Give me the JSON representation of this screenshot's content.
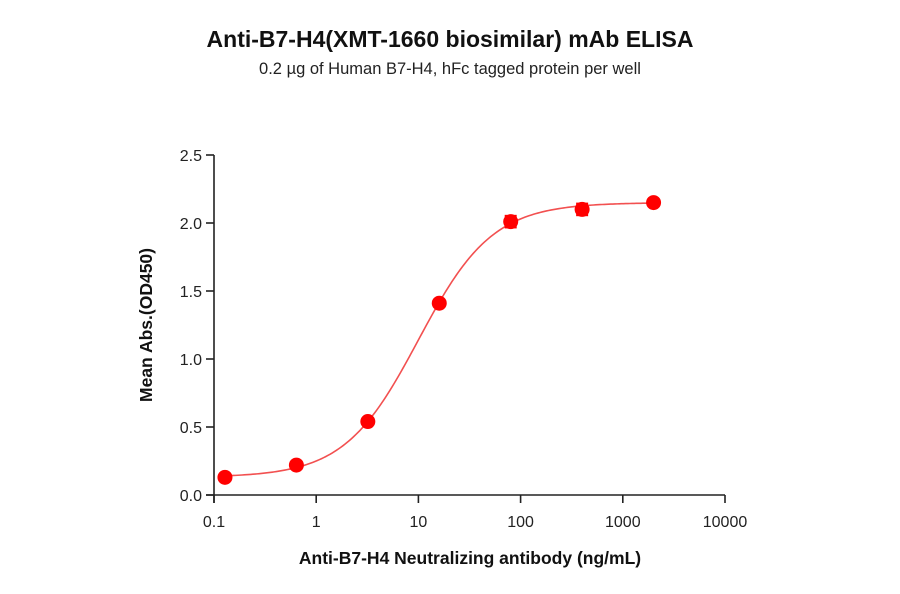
{
  "header": {
    "title": "Anti-B7-H4(XMT-1660 biosimilar) mAb ELISA",
    "subtitle": "0.2 µg of Human B7-H4, hFc tagged protein per well"
  },
  "colors": {
    "marker": "#FF0000",
    "curve": "#F25050",
    "axis": "#222222"
  },
  "chart_data": {
    "type": "scatter",
    "title": "Anti-B7-H4(XMT-1660 biosimilar) mAb ELISA",
    "subtitle": "0.2 µg of Human B7-H4, hFc tagged protein per well",
    "xlabel": "Anti-B7-H4 Neutralizing antibody  (ng/mL)",
    "ylabel": "Mean Abs.(OD450)",
    "xscale": "log",
    "xlim": [
      0.1,
      10000
    ],
    "ylim": [
      0.0,
      2.5
    ],
    "xticks": [
      "0.1",
      "1",
      "10",
      "100",
      "1000",
      "10000"
    ],
    "yticks": [
      "0.0",
      "0.5",
      "1.0",
      "1.5",
      "2.0",
      "2.5"
    ],
    "grid": false,
    "legend": null,
    "series": [
      {
        "name": "Anti-B7-H4 (XMT-1660 biosimilar)",
        "marker": "circle",
        "x": [
          0.128,
          0.64,
          3.2,
          16,
          80,
          400,
          2000
        ],
        "y": [
          0.13,
          0.22,
          0.54,
          1.41,
          2.01,
          2.1,
          2.15
        ],
        "error": [
          0.01,
          0.01,
          0.01,
          0.02,
          0.05,
          0.05,
          0.01
        ]
      }
    ],
    "fit": {
      "model": "4PL",
      "bottom": 0.13,
      "top": 2.15,
      "ec50": 10,
      "hill": 1.2
    }
  }
}
